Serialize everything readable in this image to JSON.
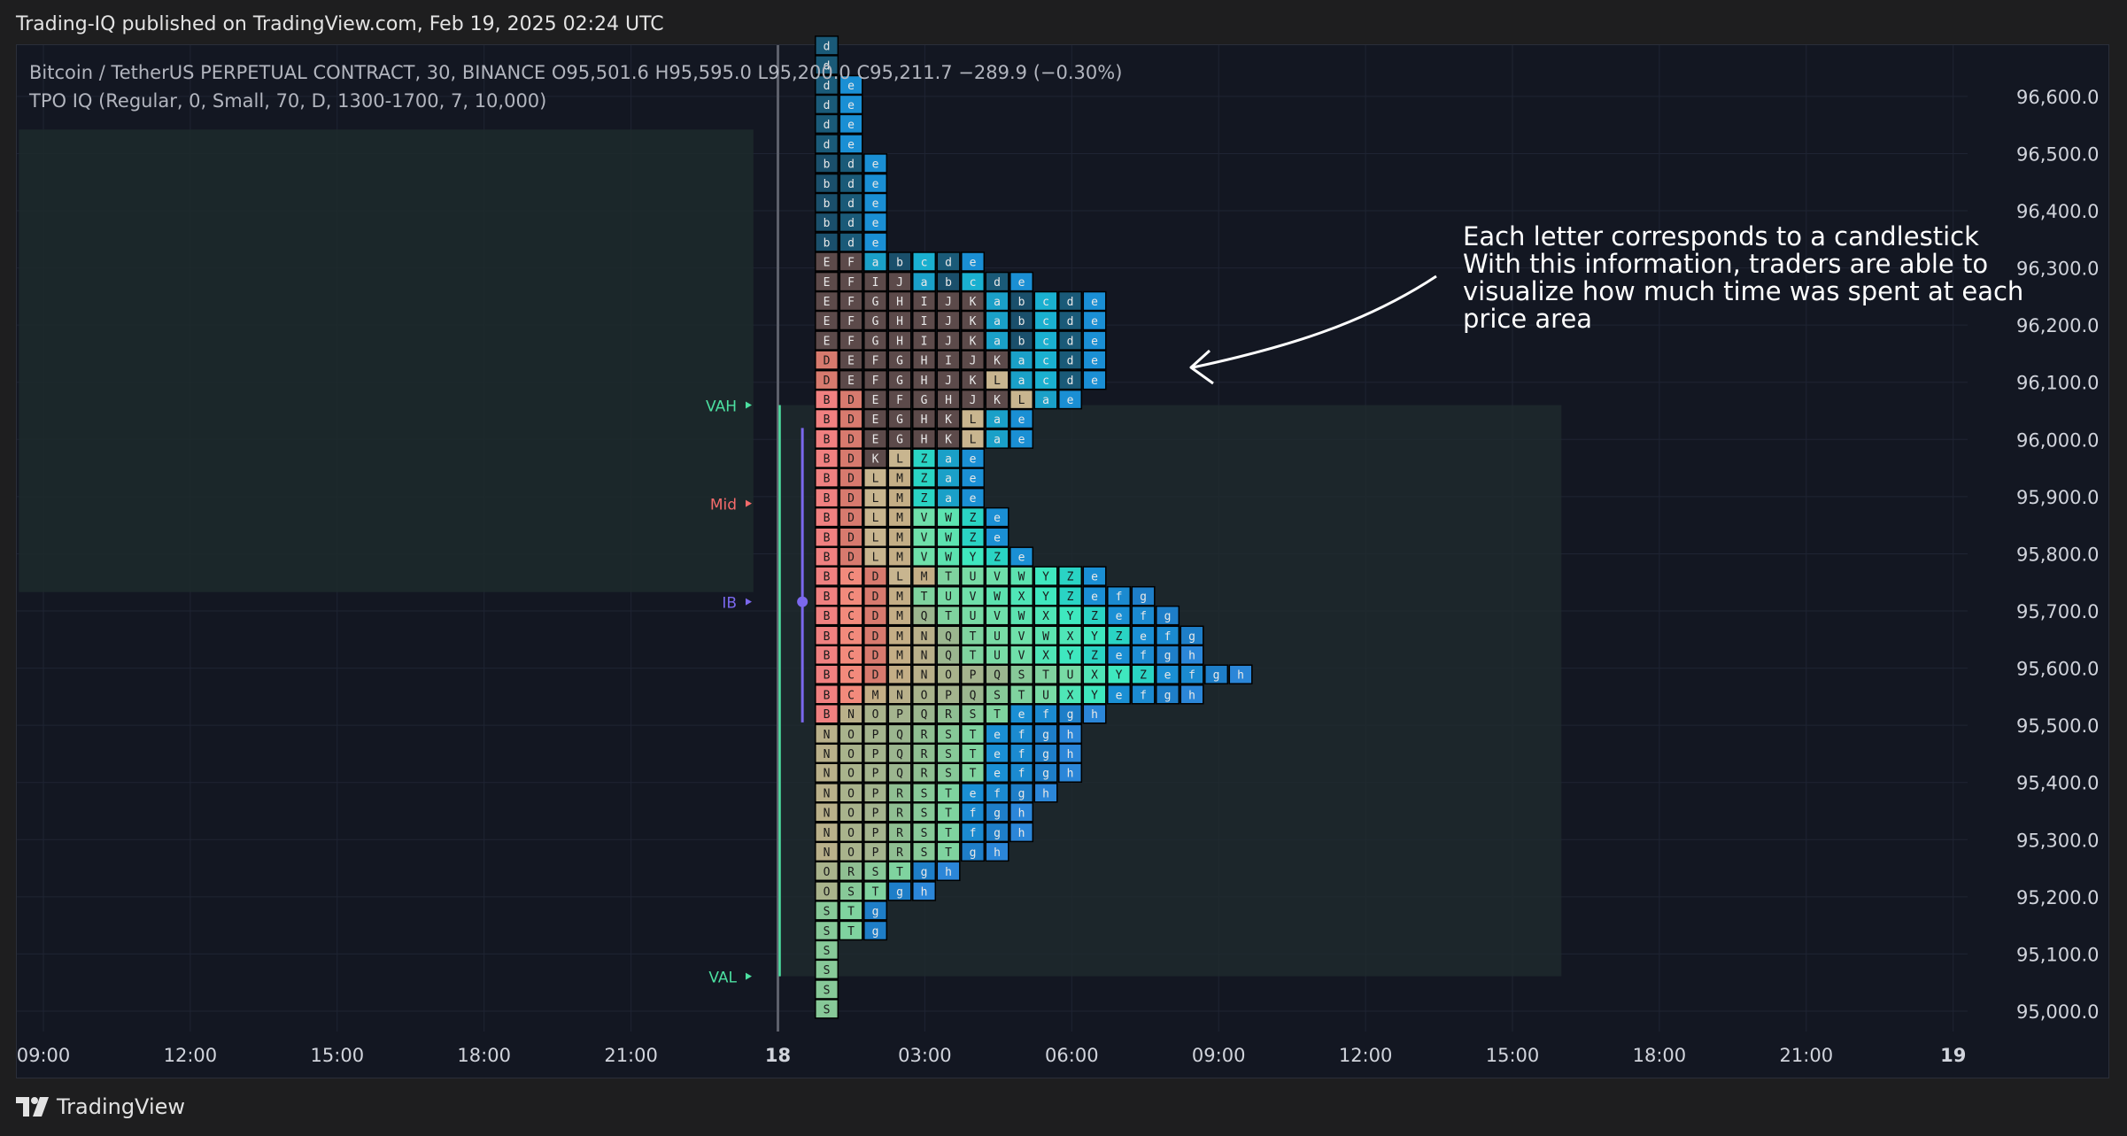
{
  "header": {
    "published_text": "Trading-IQ published on TradingView.com, Feb 19, 2025 02:24 UTC"
  },
  "footer": {
    "brand_text": "TradingView",
    "brand_icon": "tradingview-logo-icon"
  },
  "legend": {
    "symbol_line": "Bitcoin / TetherUS PERPETUAL CONTRACT, 30, BINANCE  O95,501.6  H95,595.0  L95,200.0  C95,211.7  −289.9 (−0.30%)",
    "indicator_line": "TPO IQ (Regular, 0, Small, 70, D, 1300-1700, 7, 10,000)"
  },
  "annotation": {
    "lines": [
      "Each letter corresponds to a candlestick",
      "With this information, traders are able to",
      "visualize how much time was spent at each",
      "price area"
    ]
  },
  "colors": {
    "background": "#131722",
    "axis_text": "#d1d4dc",
    "vah": "#4ce0a1",
    "mid": "#f56b6b",
    "ib": "#7b68ee",
    "val": "#4ce0a1",
    "value_area": "#1f2a2e",
    "prev_value_area": "#1d2a2c"
  },
  "chart_data": {
    "type": "tpo",
    "y_axis": {
      "ticks": [
        "96,600.0",
        "96,500.0",
        "96,400.0",
        "96,300.0",
        "96,200.0",
        "96,100.0",
        "96,000.0",
        "95,900.0",
        "95,800.0",
        "95,700.0",
        "95,600.0",
        "95,500.0",
        "95,400.0",
        "95,300.0",
        "95,200.0",
        "95,100.0",
        "95,000.0"
      ],
      "tick_values": [
        96600,
        96500,
        96400,
        96300,
        96200,
        96100,
        96000,
        95900,
        95800,
        95700,
        95600,
        95500,
        95400,
        95300,
        95200,
        95100,
        95000
      ],
      "range": [
        94970,
        96650
      ]
    },
    "x_axis": {
      "ticks": [
        "09:00",
        "12:00",
        "15:00",
        "18:00",
        "21:00",
        "18",
        "03:00",
        "06:00",
        "09:00",
        "12:00",
        "15:00",
        "18:00",
        "21:00",
        "19"
      ],
      "tick_hours": [
        9,
        12,
        15,
        18,
        21,
        24,
        27,
        30,
        33,
        36,
        39,
        42,
        45,
        48
      ],
      "range_hours": [
        8.5,
        51
      ]
    },
    "levels": [
      {
        "label": "VAH",
        "price": 96060
      },
      {
        "label": "Mid",
        "price": 95888
      },
      {
        "label": "IB",
        "price": 95716
      },
      {
        "label": "VAL",
        "price": 95061
      }
    ],
    "value_area": {
      "high": 96060,
      "low": 95061,
      "start_hours": 24,
      "end_hours": 40
    },
    "prev_value_area": {
      "high": 96542,
      "low": 95733,
      "start_hours": 8.5,
      "end_hours": 23.5
    },
    "profile_start_hours": 25,
    "row_step": 34.4,
    "row_prices": [
      96689,
      96655,
      96620,
      96586,
      96552,
      96517,
      96483,
      96448,
      96414,
      96380,
      96345,
      96311,
      96276,
      96242,
      96208,
      96173,
      96139,
      96104,
      96070,
      96036,
      96001,
      95967,
      95933,
      95898,
      95864,
      95829,
      95795,
      95761,
      95726,
      95692,
      95657,
      95623,
      95589,
      95554,
      95520,
      95485,
      95451,
      95417,
      95382,
      95348,
      95313,
      95279,
      95245,
      95210,
      95176,
      95141,
      95107,
      95073,
      95038,
      95004
    ],
    "rows": [
      "d",
      "d",
      "de",
      "de",
      "de",
      "de",
      "bde",
      "bde",
      "bde",
      "bde",
      "bde",
      "EFabcde",
      "EFIJabcde",
      "EFGHIJKabcde",
      "EFGHIJKabcde",
      "EFGHIJKabcde",
      "DEFGHIJKacde",
      "DEFGHJKLacde",
      "BDEFGHJKLae",
      "BDEGHKLae",
      "BDEGHKLae",
      "BDKLZae",
      "BDLMZae",
      "BDLMZae",
      "BDLMVWZe",
      "BDLMVWZe",
      "BDLMVWYZe",
      "BCDLMTUVWYZe",
      "BCDMTUVWXYZefg",
      "BCDMQTUVWXYZefg",
      "BCDMNQTUVWXYZefg",
      "BCDMNQTUVXYZefgh",
      "BCDMNOPQSTUXYZefgh",
      "BCMNOPQSTUXYefgh",
      "BNOPQRSTefgh",
      "NOPQRSTefgh",
      "NOPQRSTefgh",
      "NOPQRSTefgh",
      "NOPRSTefgh",
      "NOPRSTfgh",
      "NOPRSTfgh",
      "NOPRSTgh",
      "ORSTgh",
      "OSTgh",
      "STg",
      "STg",
      "S",
      "S",
      "S",
      "S"
    ],
    "letter_colors": {
      "B": "#f08080",
      "C": "#f28a7c",
      "D": "#d77a6e",
      "E": "#5c4a4a",
      "F": "#5c4a4a",
      "G": "#5c4a4a",
      "H": "#5c4a4a",
      "I": "#5c4a4a",
      "J": "#5c4a4a",
      "K": "#5c4a4a",
      "L": "#c8b58f",
      "M": "#c4ae86",
      "N": "#b9b08a",
      "O": "#a9b38c",
      "P": "#a4b48e",
      "Q": "#9bb68f",
      "R": "#8fbf92",
      "S": "#87c998",
      "T": "#7fd39f",
      "U": "#78dba5",
      "V": "#6fe0aa",
      "W": "#5ce3b0",
      "X": "#4fe6b7",
      "Y": "#3fe8bf",
      "Z": "#2ad4c4",
      "a": "#1aa0c8",
      "b": "#1a4f6b",
      "c": "#1ab0d0",
      "d": "#1a5a78",
      "e": "#1a8fd4",
      "f": "#1b8ad0",
      "g": "#1e7ec8",
      "h": "#2b86d8"
    }
  }
}
